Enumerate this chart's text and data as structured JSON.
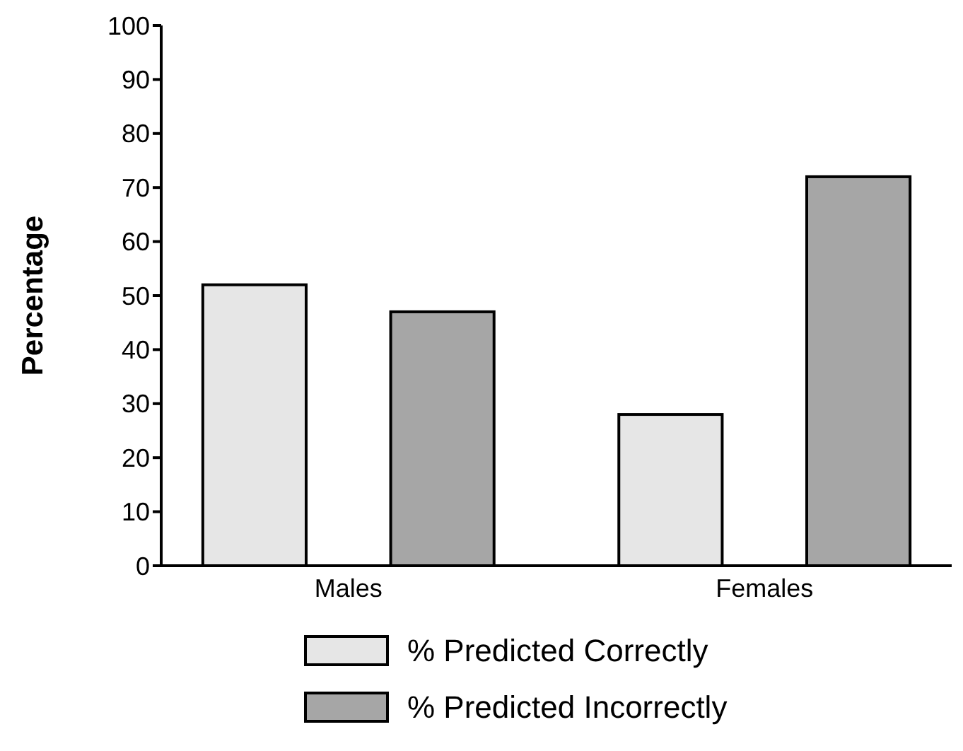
{
  "chart_data": {
    "type": "bar",
    "ylabel": "Percentage",
    "categories": [
      "Males",
      "Females"
    ],
    "series": [
      {
        "name": "% Predicted Correctly",
        "color": "#e6e6e6",
        "values": [
          52,
          28
        ]
      },
      {
        "name": "% Predicted Incorrectly",
        "color": "#a6a6a6",
        "values": [
          47,
          72
        ]
      }
    ],
    "ylim": [
      0,
      100
    ],
    "yticks": [
      0,
      10,
      20,
      30,
      40,
      50,
      60,
      70,
      80,
      90,
      100
    ],
    "grid": false,
    "legend": "bottom"
  }
}
